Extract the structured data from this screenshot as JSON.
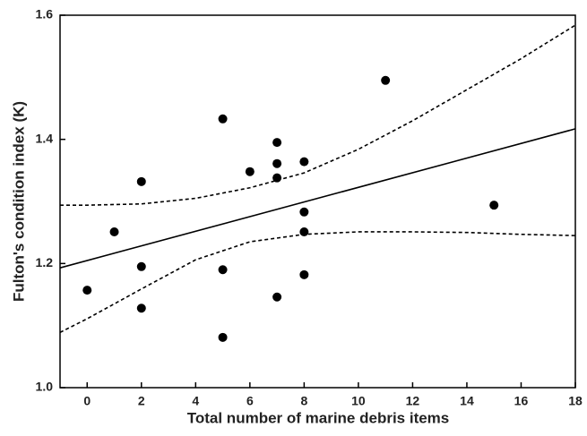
{
  "chart_data": {
    "type": "scatter",
    "x_label": "Total number of marine debris items",
    "y_label": "Fulton's condition index (K)",
    "xlim": [
      -1,
      18
    ],
    "ylim": [
      1.0,
      1.6
    ],
    "xticks": [
      0,
      2,
      4,
      6,
      8,
      10,
      12,
      14,
      16,
      18
    ],
    "yticks": [
      {
        "value": 1,
        "label": "1.0"
      },
      1.2,
      1.4,
      1.6
    ],
    "color": "#000000",
    "points": {
      "x": [
        0,
        1,
        2,
        2,
        2,
        5,
        5,
        5,
        6,
        7,
        7,
        7,
        7,
        8,
        8,
        8,
        8,
        11,
        15
      ],
      "y": [
        1.157,
        1.251,
        1.332,
        1.195,
        1.128,
        1.433,
        1.19,
        1.081,
        1.348,
        1.395,
        1.361,
        1.338,
        1.146,
        1.364,
        1.283,
        1.251,
        1.182,
        1.495,
        1.294
      ]
    },
    "fit": {
      "x": [
        -1,
        18
      ],
      "y": [
        1.193,
        1.417
      ]
    },
    "ci_upper": {
      "x": [
        -1,
        0,
        2,
        4,
        6,
        8,
        10,
        12,
        14,
        16,
        18
      ],
      "y": [
        1.294,
        1.294,
        1.296,
        1.305,
        1.322,
        1.346,
        1.384,
        1.43,
        1.48,
        1.53,
        1.584
      ]
    },
    "ci_lower": {
      "x": [
        -1,
        0,
        2,
        4,
        6,
        8,
        10,
        12,
        14,
        16,
        18
      ],
      "y": [
        1.089,
        1.111,
        1.159,
        1.206,
        1.235,
        1.247,
        1.251,
        1.251,
        1.25,
        1.247,
        1.245
      ]
    }
  }
}
